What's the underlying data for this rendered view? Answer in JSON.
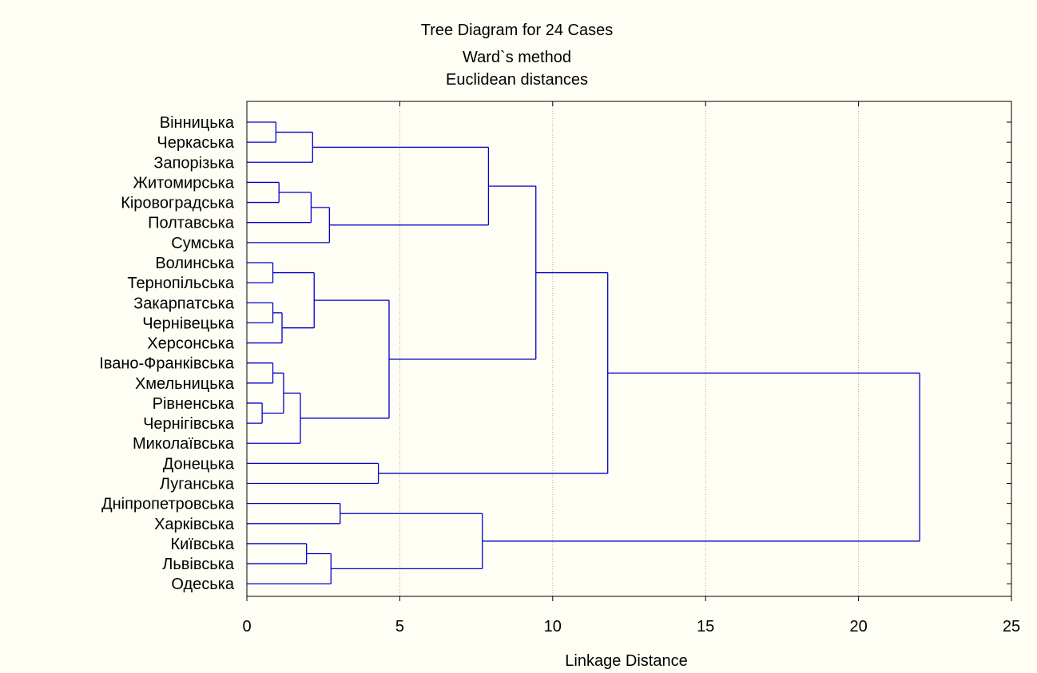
{
  "chart_data": {
    "type": "dendrogram",
    "title": "Tree Diagram for 24 Cases",
    "subtitle_lines": [
      "Ward`s method",
      "Euclidean distances"
    ],
    "xlabel": "Linkage Distance",
    "xlim": [
      0,
      25
    ],
    "xticks": [
      0,
      5,
      10,
      15,
      20,
      25
    ],
    "grid": true,
    "colors": {
      "tree": "#0000cc",
      "grid": "#aaaaaa",
      "background": "#fffef5"
    },
    "leaves": [
      "Вінницька",
      "Черкаська",
      "Запорізька",
      "Житомирська",
      "Кіровоградська",
      "Полтавська",
      "Сумська",
      "Волинська",
      "Тернопільська",
      "Закарпатська",
      "Чернівецька",
      "Херсонська",
      "Івано-Франківська",
      "Хмельницька",
      "Рівненська",
      "Чернігівська",
      "Миколаївська",
      "Донецька",
      "Луганська",
      "Дніпропетровська",
      "Харківська",
      "Київська",
      "Львівська",
      "Одеська"
    ],
    "merges": [
      {
        "id": "c1",
        "a": 0,
        "b": 1,
        "height": 0.95
      },
      {
        "id": "c2",
        "a": "c1",
        "b": 2,
        "height": 2.15
      },
      {
        "id": "c3",
        "a": 3,
        "b": 4,
        "height": 1.05
      },
      {
        "id": "c4",
        "a": "c3",
        "b": 5,
        "height": 2.1
      },
      {
        "id": "c5",
        "a": "c4",
        "b": 6,
        "height": 2.7
      },
      {
        "id": "c6",
        "a": "c2",
        "b": "c5",
        "height": 7.9
      },
      {
        "id": "c7",
        "a": 7,
        "b": 8,
        "height": 0.85
      },
      {
        "id": "c8",
        "a": 9,
        "b": 10,
        "height": 0.85
      },
      {
        "id": "c9",
        "a": "c8",
        "b": 11,
        "height": 1.15
      },
      {
        "id": "c10",
        "a": "c7",
        "b": "c9",
        "height": 2.2
      },
      {
        "id": "c11",
        "a": 12,
        "b": 13,
        "height": 0.85
      },
      {
        "id": "c12",
        "a": 14,
        "b": 15,
        "height": 0.5
      },
      {
        "id": "c13",
        "a": "c11",
        "b": "c12",
        "height": 1.2
      },
      {
        "id": "c14",
        "a": "c13",
        "b": 16,
        "height": 1.75
      },
      {
        "id": "c15",
        "a": "c10",
        "b": "c14",
        "height": 4.65
      },
      {
        "id": "c16",
        "a": "c6",
        "b": "c15",
        "height": 9.45
      },
      {
        "id": "c17",
        "a": 17,
        "b": 18,
        "height": 4.3
      },
      {
        "id": "c18",
        "a": "c16",
        "b": "c17",
        "height": 11.8
      },
      {
        "id": "c19",
        "a": 19,
        "b": 20,
        "height": 3.05
      },
      {
        "id": "c20",
        "a": 21,
        "b": 22,
        "height": 1.95
      },
      {
        "id": "c21",
        "a": "c20",
        "b": 23,
        "height": 2.75
      },
      {
        "id": "c22",
        "a": "c19",
        "b": "c21",
        "height": 7.7
      },
      {
        "id": "c23",
        "a": "c18",
        "b": "c22",
        "height": 22.0
      }
    ]
  }
}
